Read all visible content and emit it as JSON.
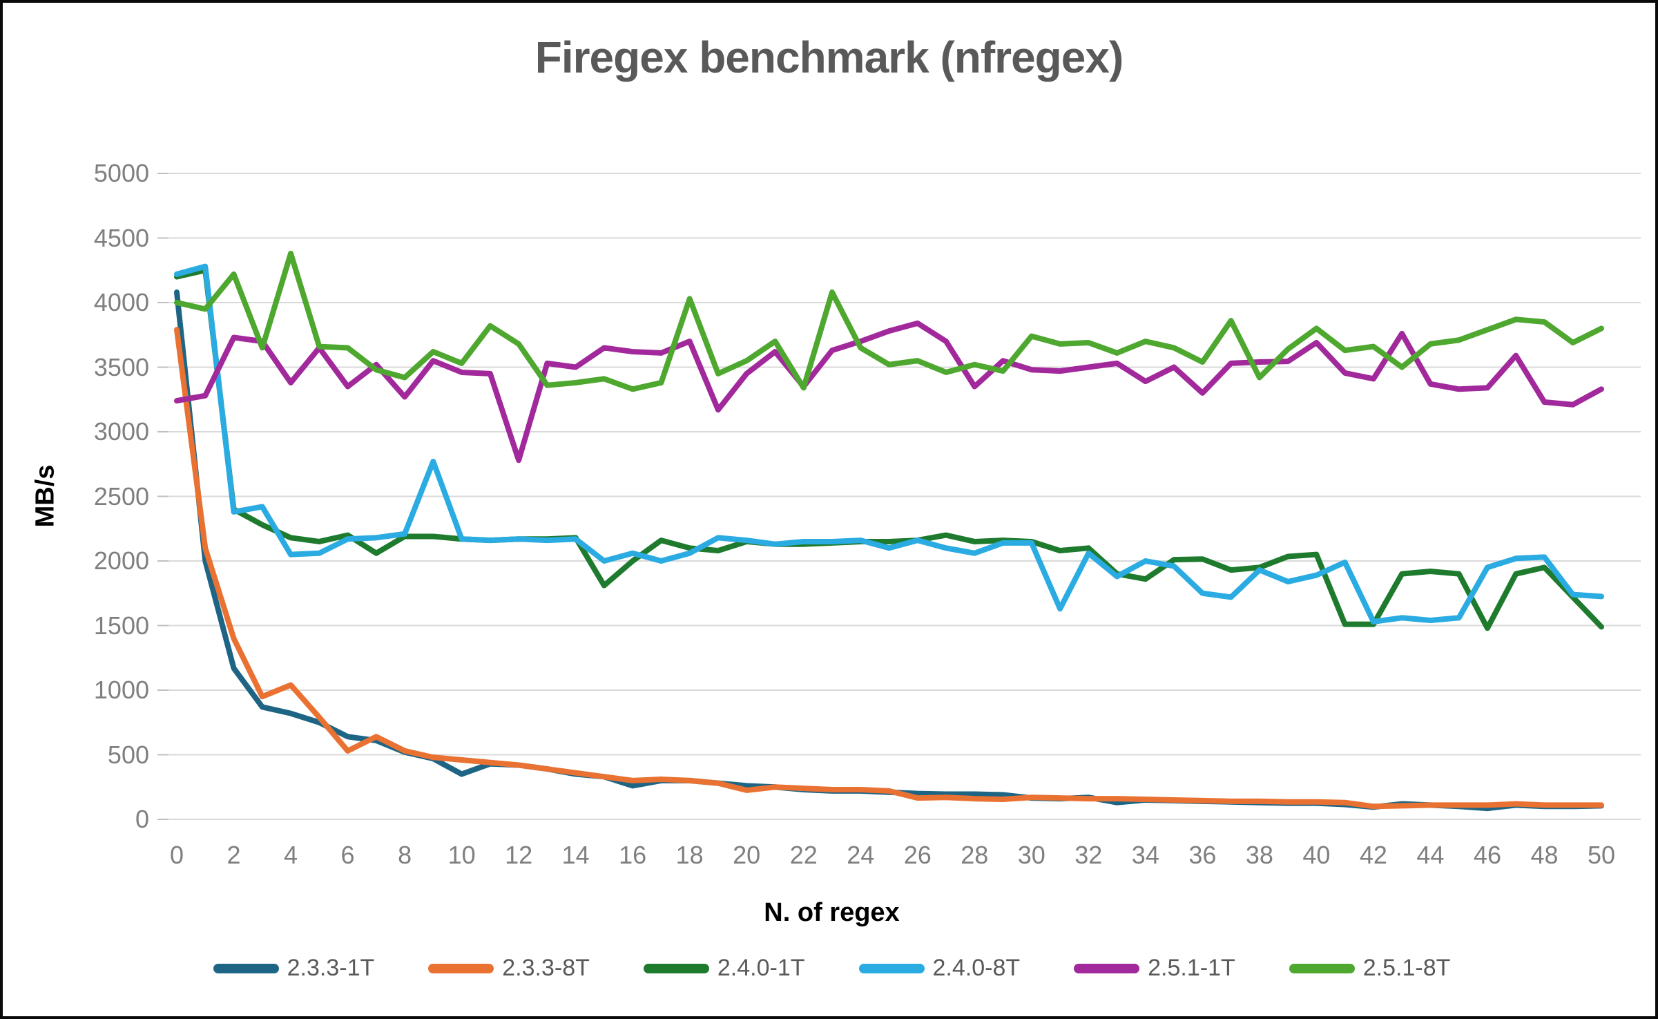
{
  "title": "Firegex benchmark (nfregex)",
  "chart_data": {
    "type": "line",
    "title": "Firegex benchmark (nfregex)",
    "xlabel": "N. of regex",
    "ylabel": "MB/s",
    "xlim": [
      0,
      50
    ],
    "ylim": [
      0,
      5000
    ],
    "grid": "horizontal",
    "legend_position": "bottom",
    "gridline_color": "#d9d9d9",
    "tick_color": "#bfbfbf",
    "x": [
      0,
      1,
      2,
      3,
      4,
      5,
      6,
      7,
      8,
      9,
      10,
      11,
      12,
      13,
      14,
      15,
      16,
      17,
      18,
      19,
      20,
      21,
      22,
      23,
      24,
      25,
      26,
      27,
      28,
      29,
      30,
      31,
      32,
      33,
      34,
      35,
      36,
      37,
      38,
      39,
      40,
      41,
      42,
      43,
      44,
      45,
      46,
      47,
      48,
      49,
      50
    ],
    "xticks": [
      0,
      2,
      4,
      6,
      8,
      10,
      12,
      14,
      16,
      18,
      20,
      22,
      24,
      26,
      28,
      30,
      32,
      34,
      36,
      38,
      40,
      42,
      44,
      46,
      48,
      50
    ],
    "yticks": [
      0,
      500,
      1000,
      1500,
      2000,
      2500,
      3000,
      3500,
      4000,
      4500,
      5000
    ],
    "series": [
      {
        "name": "2.3.3-1T",
        "color": "#1e6585",
        "values": [
          4080,
          2000,
          1170,
          870,
          820,
          750,
          640,
          610,
          520,
          470,
          350,
          430,
          420,
          390,
          350,
          330,
          260,
          300,
          300,
          280,
          260,
          250,
          230,
          220,
          220,
          210,
          200,
          195,
          195,
          190,
          165,
          160,
          170,
          130,
          150,
          145,
          140,
          135,
          130,
          125,
          125,
          115,
          95,
          120,
          110,
          100,
          85,
          110,
          100,
          100,
          105
        ]
      },
      {
        "name": "2.3.3-8T",
        "color": "#e97132",
        "values": [
          3790,
          2100,
          1400,
          950,
          1040,
          790,
          530,
          640,
          530,
          480,
          460,
          440,
          420,
          390,
          360,
          330,
          300,
          310,
          300,
          280,
          225,
          250,
          240,
          230,
          230,
          220,
          165,
          170,
          160,
          155,
          170,
          165,
          160,
          160,
          155,
          150,
          145,
          140,
          140,
          135,
          135,
          130,
          100,
          105,
          110,
          110,
          110,
          120,
          110,
          110,
          110
        ]
      },
      {
        "name": "2.4.0-1T",
        "color": "#1e7b2e",
        "values": [
          4200,
          4250,
          2400,
          2280,
          2180,
          2150,
          2200,
          2060,
          2190,
          2190,
          2170,
          2160,
          2170,
          2170,
          2180,
          1810,
          2000,
          2160,
          2100,
          2080,
          2150,
          2130,
          2130,
          2140,
          2150,
          2150,
          2160,
          2200,
          2150,
          2160,
          2150,
          2080,
          2100,
          1900,
          1860,
          2010,
          2015,
          1930,
          1950,
          2035,
          2050,
          1510,
          1510,
          1900,
          1920,
          1900,
          1480,
          1900,
          1950,
          1720,
          1490
        ]
      },
      {
        "name": "2.4.0-8T",
        "color": "#2aabe2",
        "values": [
          4220,
          4280,
          2380,
          2420,
          2050,
          2060,
          2170,
          2180,
          2210,
          2770,
          2170,
          2160,
          2170,
          2160,
          2170,
          2000,
          2060,
          2000,
          2060,
          2180,
          2160,
          2130,
          2150,
          2150,
          2160,
          2100,
          2160,
          2100,
          2060,
          2140,
          2140,
          1630,
          2060,
          1880,
          2000,
          1960,
          1750,
          1720,
          1930,
          1840,
          1890,
          1990,
          1530,
          1560,
          1540,
          1560,
          1950,
          2020,
          2030,
          1740,
          1725
        ]
      },
      {
        "name": "2.5.1-1T",
        "color": "#a2299b",
        "values": [
          3240,
          3280,
          3730,
          3700,
          3380,
          3650,
          3350,
          3520,
          3270,
          3550,
          3460,
          3450,
          2780,
          3530,
          3500,
          3650,
          3620,
          3610,
          3700,
          3170,
          3450,
          3620,
          3350,
          3630,
          3700,
          3780,
          3840,
          3700,
          3350,
          3550,
          3480,
          3470,
          3500,
          3530,
          3390,
          3500,
          3300,
          3530,
          3540,
          3545,
          3690,
          3455,
          3410,
          3760,
          3370,
          3330,
          3340,
          3590,
          3230,
          3210,
          3330
        ]
      },
      {
        "name": "2.5.1-8T",
        "color": "#4ea72e",
        "values": [
          4000,
          3950,
          4220,
          3650,
          4380,
          3660,
          3650,
          3480,
          3420,
          3620,
          3530,
          3820,
          3680,
          3360,
          3380,
          3410,
          3330,
          3380,
          4030,
          3450,
          3550,
          3700,
          3340,
          4080,
          3650,
          3520,
          3550,
          3460,
          3520,
          3470,
          3740,
          3680,
          3690,
          3610,
          3700,
          3650,
          3540,
          3860,
          3420,
          3640,
          3800,
          3630,
          3660,
          3500,
          3680,
          3710,
          3790,
          3870,
          3850,
          3690,
          3800
        ]
      }
    ]
  }
}
